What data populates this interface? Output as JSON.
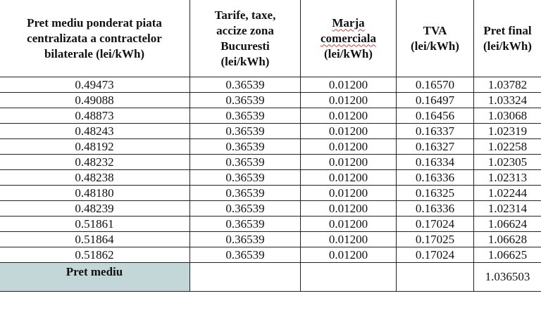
{
  "table": {
    "headers": [
      [
        "Pret mediu ponderat piata",
        "centralizata a contractelor",
        "bilaterale (lei/kWh)"
      ],
      [
        "Tarife, taxe,",
        "accize zona",
        "Bucuresti",
        "(lei/kWh)"
      ],
      [
        "Marja",
        "comerciala",
        "(lei/kWh)"
      ],
      [
        "TVA",
        "(lei/kWh)"
      ],
      [
        "Pret final",
        "(lei/kWh)"
      ]
    ],
    "rows": [
      [
        "0.49473",
        "0.36539",
        "0.01200",
        "0.16570",
        "1.03782"
      ],
      [
        "0.49088",
        "0.36539",
        "0.01200",
        "0.16497",
        "1.03324"
      ],
      [
        "0.48873",
        "0.36539",
        "0.01200",
        "0.16456",
        "1.03068"
      ],
      [
        "0.48243",
        "0.36539",
        "0.01200",
        "0.16337",
        "1.02319"
      ],
      [
        "0.48192",
        "0.36539",
        "0.01200",
        "0.16327",
        "1.02258"
      ],
      [
        "0.48232",
        "0.36539",
        "0.01200",
        "0.16334",
        "1.02305"
      ],
      [
        "0.48238",
        "0.36539",
        "0.01200",
        "0.16336",
        "1.02313"
      ],
      [
        "0.48180",
        "0.36539",
        "0.01200",
        "0.16325",
        "1.02244"
      ],
      [
        "0.48239",
        "0.36539",
        "0.01200",
        "0.16336",
        "1.02314"
      ],
      [
        "0.51861",
        "0.36539",
        "0.01200",
        "0.17024",
        "1.06624"
      ],
      [
        "0.51864",
        "0.36539",
        "0.01200",
        "0.17025",
        "1.06628"
      ],
      [
        "0.51862",
        "0.36539",
        "0.01200",
        "0.17024",
        "1.06625"
      ]
    ],
    "summary": {
      "label": "Pret mediu",
      "value": "1.036503"
    }
  },
  "colors": {
    "summary_label_bg": "#c3d7d9",
    "border": "#222222"
  }
}
